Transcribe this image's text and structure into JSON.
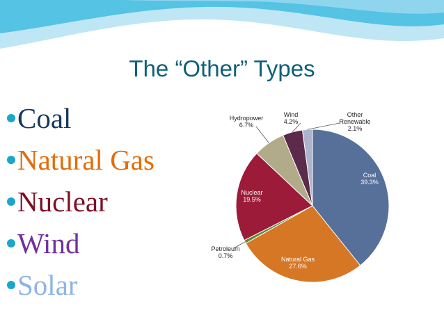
{
  "slide": {
    "title": "The “Other” Types",
    "bullets": [
      {
        "label": "Coal",
        "color": "#17375e"
      },
      {
        "label": "Natural Gas",
        "color": "#e46c0a"
      },
      {
        "label": "Nuclear",
        "color": "#7f1024"
      },
      {
        "label": "Wind",
        "color": "#7030a0"
      },
      {
        "label": "Solar",
        "color": "#8eb4e3"
      }
    ],
    "bullet_dot_color": "#1ba6cc",
    "header_colors": [
      "#bfe6f4",
      "#54c3e4",
      "#8fd5ee"
    ]
  },
  "chart_data": {
    "type": "pie",
    "title": "",
    "slices": [
      {
        "label": "Coal",
        "value_label": "39.3%",
        "value": 39.3,
        "color": "#56709a",
        "label_color": "#ffffff"
      },
      {
        "label": "Natural Gas",
        "value_label": "27.6%",
        "value": 27.6,
        "color": "#d67726",
        "label_color": "#ffffff"
      },
      {
        "label": "Petroleum",
        "value_label": "0.7%",
        "value": 0.7,
        "color": "#5e8a3a",
        "label_color": "#222222"
      },
      {
        "label": "Nuclear",
        "value_label": "19.5%",
        "value": 19.5,
        "color": "#9b1b38",
        "label_color": "#ffffff"
      },
      {
        "label": "Hydropower",
        "value_label": "6.7%",
        "value": 6.7,
        "color": "#b2ab8a",
        "label_color": "#222222"
      },
      {
        "label": "Wind",
        "value_label": "4.2%",
        "value": 4.2,
        "color": "#5c2a4a",
        "label_color": "#222222"
      },
      {
        "label": "Other Renewable",
        "value_label": "2.1%",
        "value": 2.1,
        "color": "#adb3cb",
        "label_color": "#222222"
      }
    ]
  }
}
